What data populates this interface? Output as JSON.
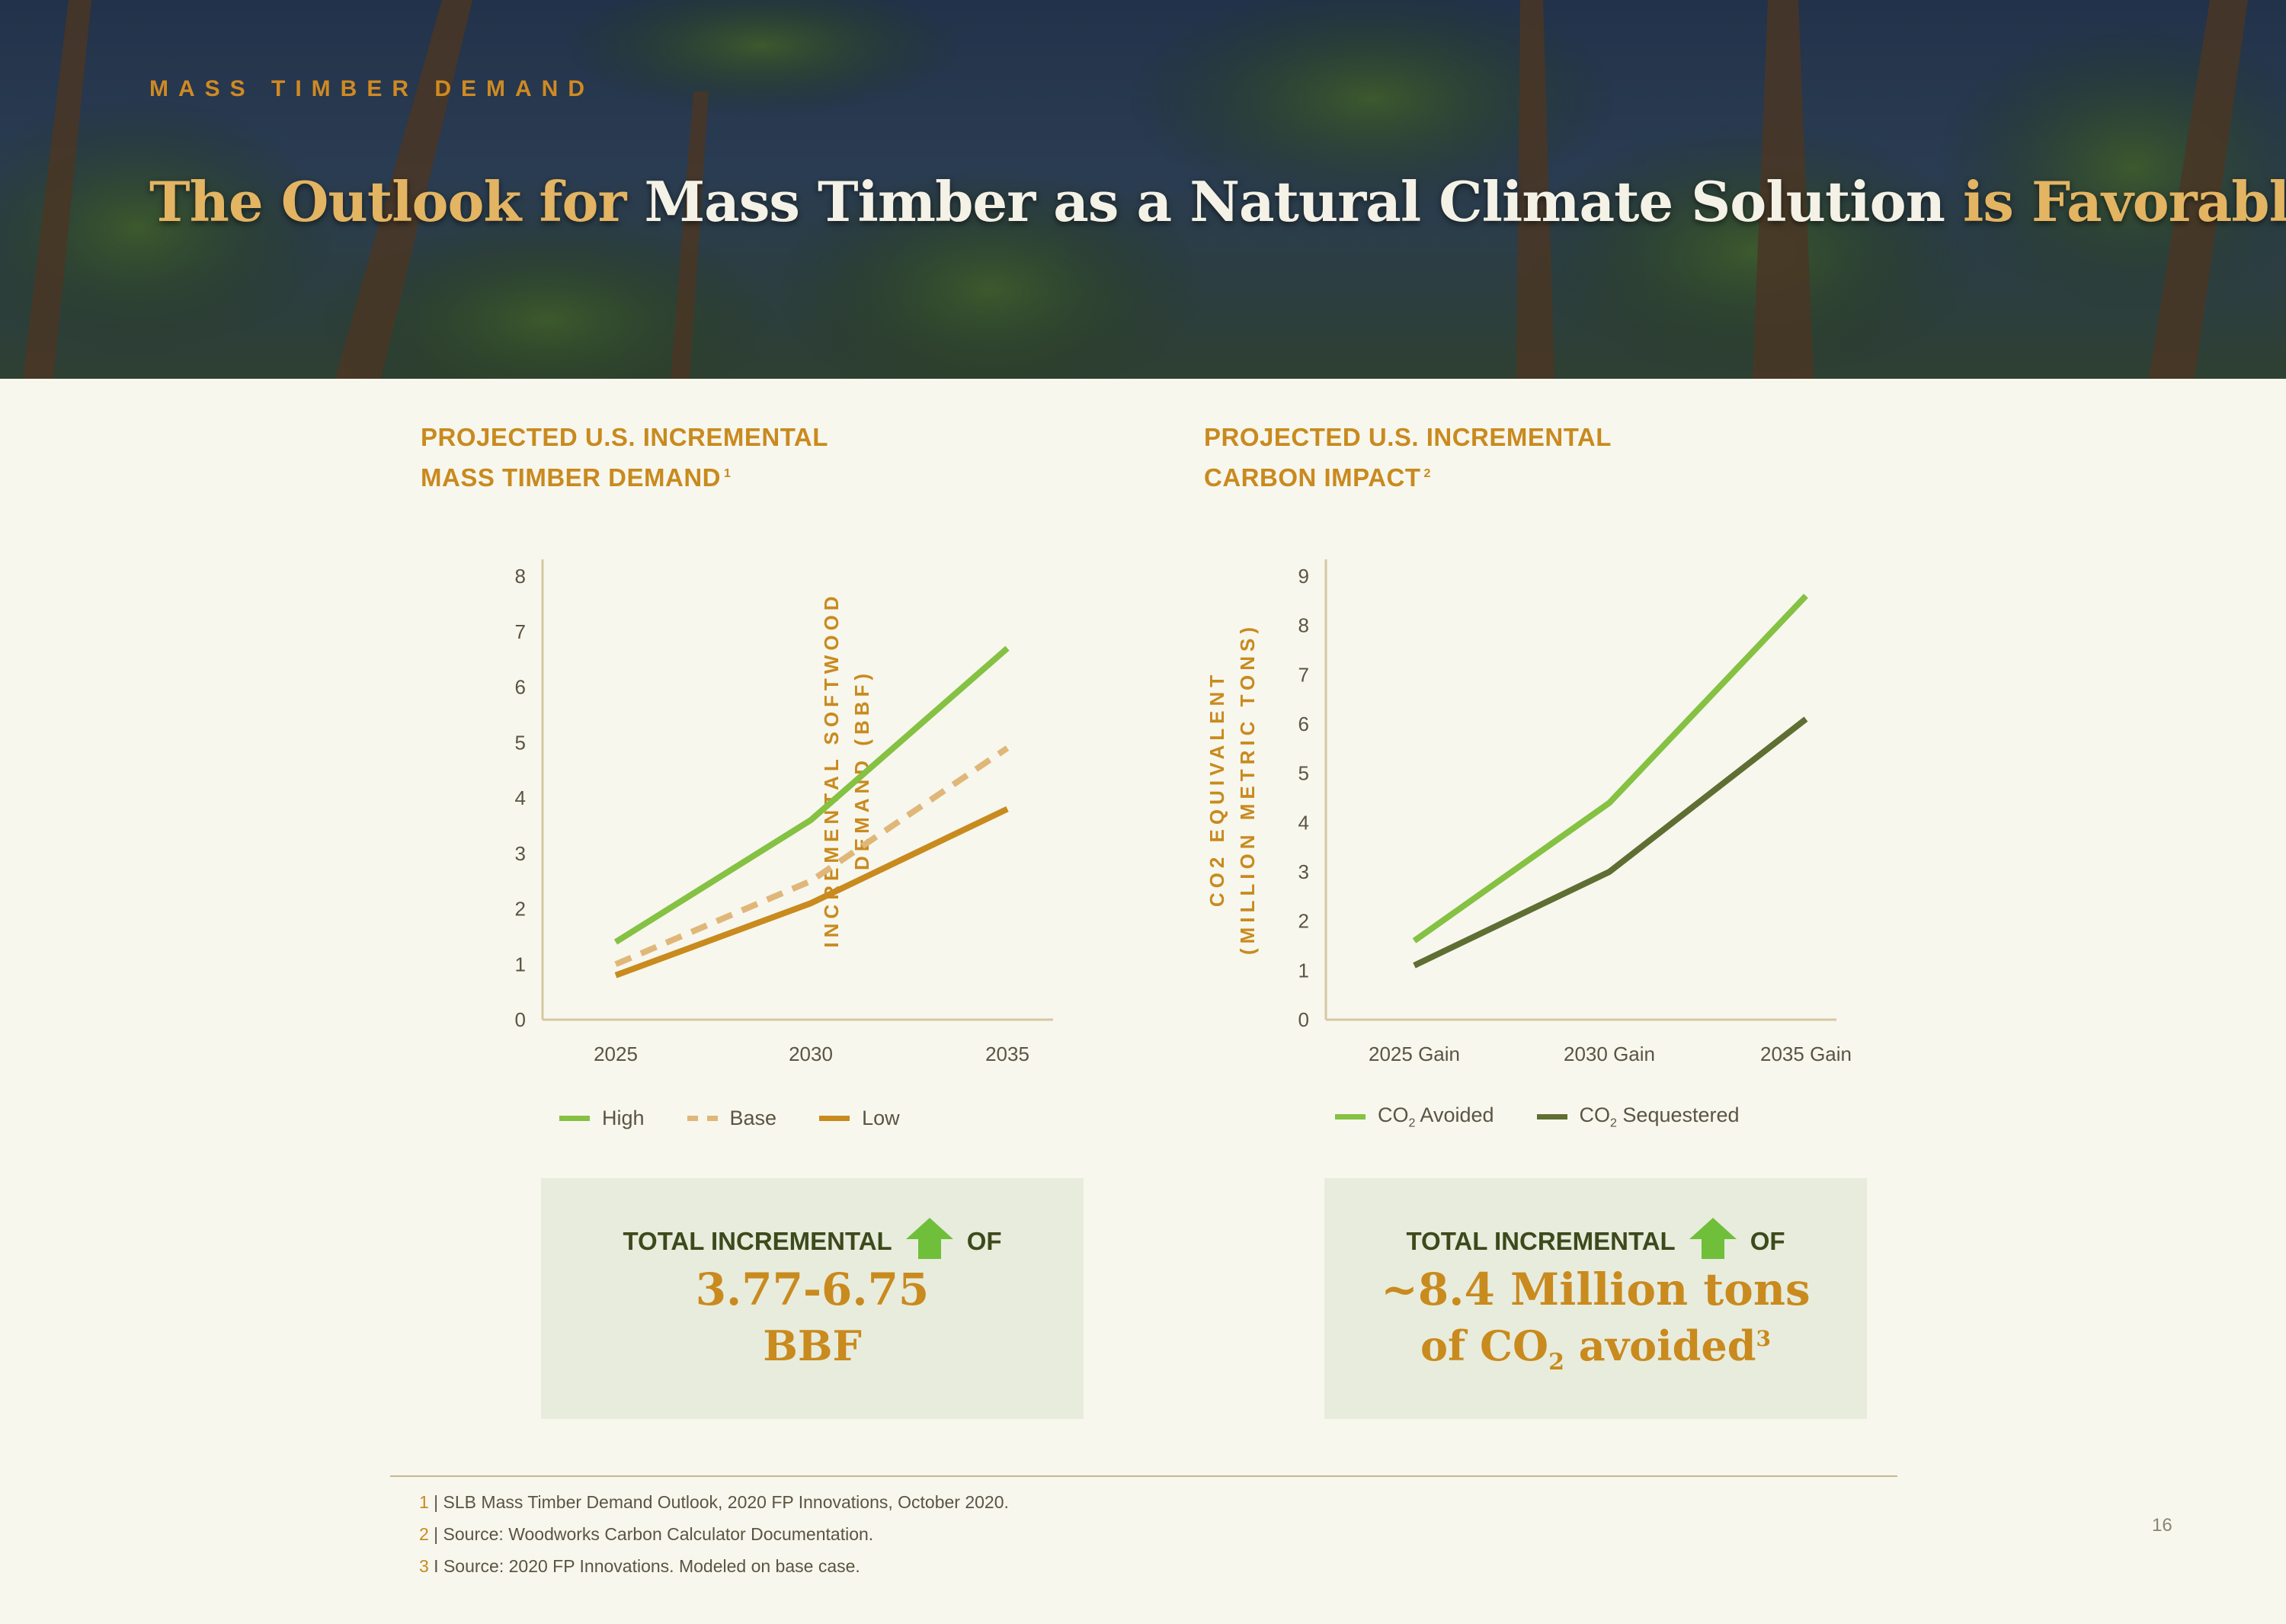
{
  "header": {
    "eyebrow": "MASS TIMBER DEMAND",
    "title_part1": "The Outlook for ",
    "title_part2": "Mass Timber as a Natural Climate Solution",
    "title_part3": " is Favorable"
  },
  "colors": {
    "gold": "#c98a1e",
    "light_green": "#85c142",
    "dark_green": "#5f6e33",
    "tan": "#e0b778",
    "arrow_green": "#6fbf3a"
  },
  "left_panel": {
    "title_line1": "PROJECTED U.S. INCREMENTAL",
    "title_line2": "MASS TIMBER DEMAND",
    "title_marker": "1",
    "legend": [
      "High",
      "Base",
      "Low"
    ],
    "callout": {
      "label_before": "TOTAL INCREMENTAL",
      "label_after": "OF",
      "value": "3.77-6.75",
      "unit": "BBF"
    }
  },
  "right_panel": {
    "title_line1": "PROJECTED U.S. INCREMENTAL",
    "title_line2": "CARBON IMPACT",
    "title_marker": "2",
    "legend": [
      {
        "prefix": "CO",
        "sub": "2",
        "suffix": " Avoided"
      },
      {
        "prefix": "CO",
        "sub": "2",
        "suffix": " Sequestered"
      }
    ],
    "callout": {
      "label_before": "TOTAL INCREMENTAL",
      "label_after": "OF",
      "value": "~8.4 Million tons",
      "line2_prefix": "of CO",
      "line2_sub": "2",
      "line2_suffix": " avoided",
      "line2_marker": "3"
    }
  },
  "chart_data": [
    {
      "type": "line",
      "title": "",
      "xlabel": "",
      "ylabel_line1": "INCREMENTAL SOFTWOOD",
      "ylabel_line2": "DEMAND (BBF)",
      "categories": [
        "2025",
        "2030",
        "2035"
      ],
      "ylim": [
        0,
        8
      ],
      "yticks": [
        0,
        1,
        2,
        3,
        4,
        5,
        6,
        7,
        8
      ],
      "legend_position": "bottom",
      "grid": false,
      "series": [
        {
          "name": "High",
          "values": [
            1.4,
            3.6,
            6.7
          ],
          "color": "#85c142",
          "dash": "solid"
        },
        {
          "name": "Base",
          "values": [
            1.0,
            2.5,
            4.9
          ],
          "color": "#e0b778",
          "dash": "dashed"
        },
        {
          "name": "Low",
          "values": [
            0.8,
            2.1,
            3.8
          ],
          "color": "#c98a1e",
          "dash": "solid"
        }
      ]
    },
    {
      "type": "line",
      "title": "",
      "xlabel": "",
      "ylabel_line1": "CO2 EQUIVALENT",
      "ylabel_line2": "(MILLION METRIC TONS)",
      "categories": [
        "2025 Gain",
        "2030 Gain",
        "2035 Gain"
      ],
      "ylim": [
        0,
        9
      ],
      "yticks": [
        0,
        1,
        2,
        3,
        4,
        5,
        6,
        7,
        8,
        9
      ],
      "legend_position": "bottom",
      "grid": false,
      "series": [
        {
          "name": "CO2 Avoided",
          "values": [
            1.6,
            4.4,
            8.6
          ],
          "color": "#85c142",
          "dash": "solid"
        },
        {
          "name": "CO2 Sequestered",
          "values": [
            1.1,
            3.0,
            6.1
          ],
          "color": "#5f6e33",
          "dash": "solid"
        }
      ]
    }
  ],
  "footnotes": [
    {
      "num": "1",
      "text": " | SLB Mass Timber Demand Outlook, 2020 FP Innovations, October 2020."
    },
    {
      "num": "2",
      "text": " | Source: Woodworks Carbon Calculator Documentation."
    },
    {
      "num": "3",
      "text": " I Source: 2020 FP Innovations. Modeled on base case."
    }
  ],
  "page_number": "16"
}
